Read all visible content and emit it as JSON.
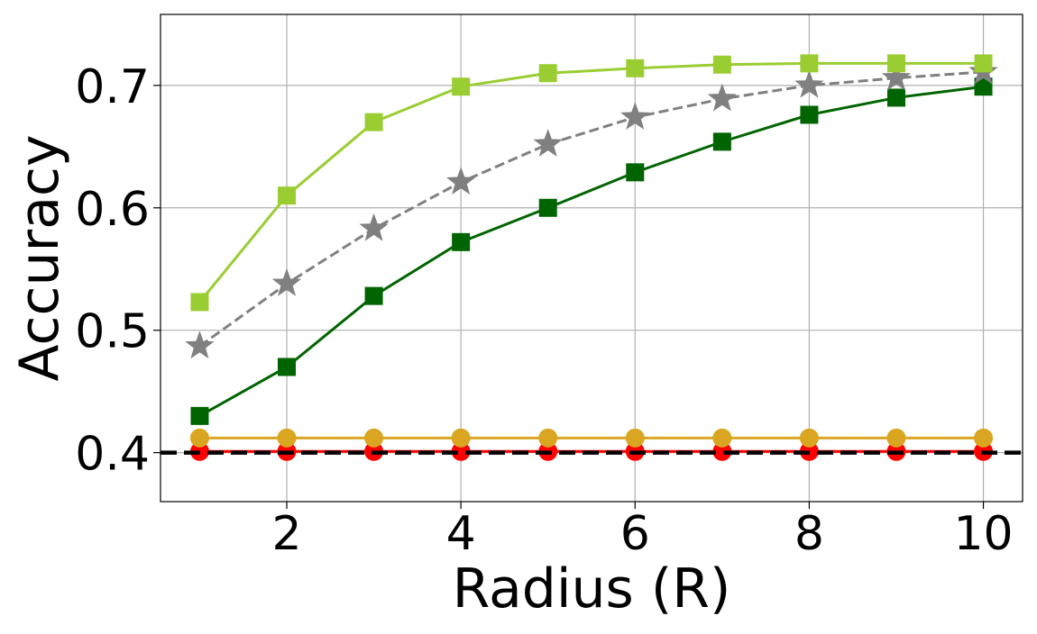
{
  "chart_data": {
    "type": "line",
    "title": "",
    "xlabel": "Radius (R)",
    "ylabel": "Accuracy",
    "xlim": [
      0.55,
      10.45
    ],
    "ylim": [
      0.36,
      0.758
    ],
    "xticks": [
      2,
      4,
      6,
      8,
      10
    ],
    "xtick_labels": [
      "2",
      "4",
      "6",
      "8",
      "10"
    ],
    "yticks": [
      0.4,
      0.5,
      0.6,
      0.7
    ],
    "ytick_labels": [
      "0.4",
      "0.5",
      "0.6",
      "0.7"
    ],
    "grid": true,
    "legend": "none",
    "x": [
      1,
      2,
      3,
      4,
      5,
      6,
      7,
      8,
      9,
      10
    ],
    "series": [
      {
        "color": "#9acd32",
        "marker": "square",
        "linestyle": "solid",
        "values": [
          0.523,
          0.61,
          0.67,
          0.699,
          0.71,
          0.714,
          0.717,
          0.718,
          0.718,
          0.718
        ]
      },
      {
        "color": "#808080",
        "marker": "star",
        "linestyle": "dashed",
        "values": [
          0.487,
          0.538,
          0.583,
          0.621,
          0.652,
          0.674,
          0.689,
          0.7,
          0.706,
          0.711
        ]
      },
      {
        "color": "#006400",
        "marker": "square",
        "linestyle": "solid",
        "values": [
          0.43,
          0.47,
          0.528,
          0.572,
          0.6,
          0.629,
          0.654,
          0.676,
          0.69,
          0.699
        ]
      },
      {
        "color": "#daa520",
        "marker": "circle",
        "linestyle": "solid",
        "values": [
          0.412,
          0.412,
          0.412,
          0.412,
          0.412,
          0.412,
          0.412,
          0.412,
          0.412,
          0.412
        ]
      },
      {
        "color": "#ff0000",
        "marker": "circle",
        "linestyle": "solid",
        "values": [
          0.401,
          0.401,
          0.401,
          0.401,
          0.401,
          0.401,
          0.401,
          0.401,
          0.401,
          0.401
        ]
      }
    ],
    "reference_line": {
      "y": 0.4,
      "color": "#000000",
      "linestyle": "dashed"
    }
  }
}
